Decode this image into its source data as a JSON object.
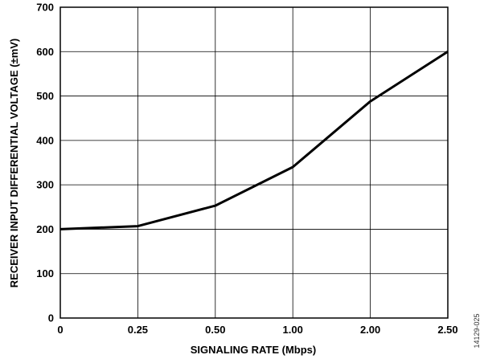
{
  "figure_id": "14129-025",
  "colors": {
    "line": "#000000",
    "grid": "#000000",
    "background": "#ffffff"
  },
  "chart_data": {
    "type": "line",
    "xlabel": "SIGNALING RATE (Mbps)",
    "ylabel": "RECEIVER INPUT DIFFERENTIAL VOLTAGE (±mV)",
    "categories": [
      "0",
      "0.25",
      "0.50",
      "1.00",
      "2.00",
      "2.50"
    ],
    "series": [
      {
        "values": [
          200,
          207,
          253,
          340,
          488,
          600
        ]
      }
    ],
    "ylim": [
      0,
      700
    ],
    "yticks": [
      0,
      100,
      200,
      300,
      400,
      500,
      600,
      700
    ],
    "grid": true,
    "legend": "none"
  }
}
